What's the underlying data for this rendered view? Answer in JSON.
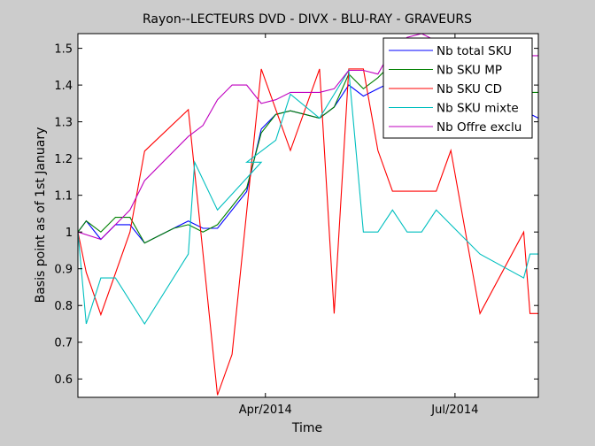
{
  "chart_data": {
    "type": "line",
    "title": "Rayon--LECTEURS DVD - DIVX - BLU-RAY - GRAVEURS",
    "xlabel": "Time",
    "ylabel": "Basis point as of 1st January",
    "xlim": [
      "2014-01-01",
      "2014-08-10"
    ],
    "ylim": [
      0.55,
      1.54
    ],
    "x_ticks": [
      {
        "date": "2014-04-01",
        "label": "Apr/2014"
      },
      {
        "date": "2014-07-01",
        "label": "Jul/2014"
      }
    ],
    "y_ticks": [
      0.6,
      0.7,
      0.8,
      0.9,
      1,
      1.1,
      1.2,
      1.3,
      1.4,
      1.5
    ],
    "y_tick_labels": [
      "0.6",
      "0.7",
      "0.8",
      "0.9",
      "1",
      "1.1",
      "1.2",
      "1.3",
      "1.4",
      "1.5"
    ],
    "legend_position": "top-right",
    "grid": false,
    "series": [
      {
        "name": "Nb total SKU",
        "color": "#0000ff",
        "points": [
          [
            "2014-01-01",
            1.0
          ],
          [
            "2014-01-05",
            1.03
          ],
          [
            "2014-01-12",
            0.98
          ],
          [
            "2014-01-19",
            1.02
          ],
          [
            "2014-01-26",
            1.02
          ],
          [
            "2014-02-02",
            0.97
          ],
          [
            "2014-02-09",
            0.99
          ],
          [
            "2014-02-16",
            1.01
          ],
          [
            "2014-02-23",
            1.03
          ],
          [
            "2014-03-02",
            1.01
          ],
          [
            "2014-03-09",
            1.01
          ],
          [
            "2014-03-16",
            1.06
          ],
          [
            "2014-03-23",
            1.11
          ],
          [
            "2014-03-30",
            1.28
          ],
          [
            "2014-04-06",
            1.32
          ],
          [
            "2014-04-13",
            1.33
          ],
          [
            "2014-04-20",
            1.32
          ],
          [
            "2014-04-27",
            1.31
          ],
          [
            "2014-05-04",
            1.34
          ],
          [
            "2014-05-11",
            1.4
          ],
          [
            "2014-05-18",
            1.37
          ],
          [
            "2014-05-25",
            1.39
          ],
          [
            "2014-06-01",
            1.41
          ],
          [
            "2014-06-08",
            1.37
          ],
          [
            "2014-06-15",
            1.36
          ],
          [
            "2014-06-22",
            1.35
          ],
          [
            "2014-06-29",
            1.36
          ],
          [
            "2014-07-06",
            1.35
          ],
          [
            "2014-07-13",
            1.34
          ],
          [
            "2014-07-20",
            1.34
          ],
          [
            "2014-07-27",
            1.33
          ],
          [
            "2014-08-03",
            1.33
          ],
          [
            "2014-08-10",
            1.31
          ]
        ]
      },
      {
        "name": "Nb SKU MP",
        "color": "#008000",
        "points": [
          [
            "2014-01-01",
            1.0
          ],
          [
            "2014-01-05",
            1.03
          ],
          [
            "2014-01-12",
            1.0
          ],
          [
            "2014-01-19",
            1.04
          ],
          [
            "2014-01-26",
            1.04
          ],
          [
            "2014-02-02",
            0.97
          ],
          [
            "2014-02-09",
            0.99
          ],
          [
            "2014-02-16",
            1.01
          ],
          [
            "2014-02-23",
            1.02
          ],
          [
            "2014-03-02",
            1.0
          ],
          [
            "2014-03-09",
            1.02
          ],
          [
            "2014-03-16",
            1.07
          ],
          [
            "2014-03-23",
            1.12
          ],
          [
            "2014-03-30",
            1.27
          ],
          [
            "2014-04-06",
            1.32
          ],
          [
            "2014-04-13",
            1.33
          ],
          [
            "2014-04-20",
            1.32
          ],
          [
            "2014-04-27",
            1.31
          ],
          [
            "2014-05-04",
            1.34
          ],
          [
            "2014-05-11",
            1.43
          ],
          [
            "2014-05-18",
            1.39
          ],
          [
            "2014-05-25",
            1.42
          ],
          [
            "2014-06-01",
            1.46
          ],
          [
            "2014-06-08",
            1.42
          ],
          [
            "2014-06-15",
            1.4
          ],
          [
            "2014-06-22",
            1.39
          ],
          [
            "2014-06-29",
            1.4
          ],
          [
            "2014-07-06",
            1.39
          ],
          [
            "2014-07-13",
            1.38
          ],
          [
            "2014-07-20",
            1.38
          ],
          [
            "2014-07-27",
            1.38
          ],
          [
            "2014-08-03",
            1.38
          ],
          [
            "2014-08-10",
            1.38
          ]
        ]
      },
      {
        "name": "Nb SKU CD",
        "color": "#ff0000",
        "points": [
          [
            "2014-01-01",
            1.0
          ],
          [
            "2014-01-05",
            0.89
          ],
          [
            "2014-01-12",
            0.775
          ],
          [
            "2014-01-26",
            1.0
          ],
          [
            "2014-02-02",
            1.22
          ],
          [
            "2014-02-23",
            1.333
          ],
          [
            "2014-03-09",
            0.556
          ],
          [
            "2014-03-16",
            0.667
          ],
          [
            "2014-03-30",
            1.444
          ],
          [
            "2014-04-13",
            1.222
          ],
          [
            "2014-04-27",
            1.444
          ],
          [
            "2014-05-04",
            0.778
          ],
          [
            "2014-05-11",
            1.444
          ],
          [
            "2014-05-18",
            1.444
          ],
          [
            "2014-05-25",
            1.222
          ],
          [
            "2014-06-01",
            1.111
          ],
          [
            "2014-06-15",
            1.111
          ],
          [
            "2014-06-22",
            1.111
          ],
          [
            "2014-06-29",
            1.222
          ],
          [
            "2014-07-13",
            0.778
          ],
          [
            "2014-08-03",
            1.0
          ],
          [
            "2014-08-06",
            0.778
          ],
          [
            "2014-08-10",
            0.778
          ]
        ]
      },
      {
        "name": "Nb SKU mixte",
        "color": "#00bfbf",
        "points": [
          [
            "2014-01-01",
            1.0
          ],
          [
            "2014-01-05",
            0.75
          ],
          [
            "2014-01-12",
            0.875
          ],
          [
            "2014-01-19",
            0.875
          ],
          [
            "2014-02-02",
            0.75
          ],
          [
            "2014-02-23",
            0.94
          ],
          [
            "2014-02-26",
            1.19
          ],
          [
            "2014-03-09",
            1.06
          ],
          [
            "2014-03-30",
            1.19
          ],
          [
            "2014-03-23",
            1.19
          ],
          [
            "2014-04-06",
            1.25
          ],
          [
            "2014-04-13",
            1.375
          ],
          [
            "2014-04-27",
            1.31
          ],
          [
            "2014-05-04",
            1.375
          ],
          [
            "2014-05-11",
            1.44
          ],
          [
            "2014-05-18",
            1.0
          ],
          [
            "2014-05-25",
            1.0
          ],
          [
            "2014-06-01",
            1.06
          ],
          [
            "2014-06-08",
            1.0
          ],
          [
            "2014-06-15",
            1.0
          ],
          [
            "2014-06-22",
            1.06
          ],
          [
            "2014-07-13",
            0.94
          ],
          [
            "2014-08-03",
            0.875
          ],
          [
            "2014-08-06",
            0.94
          ],
          [
            "2014-08-10",
            0.94
          ]
        ]
      },
      {
        "name": "Nb Offre exclu",
        "color": "#bf00bf",
        "points": [
          [
            "2014-01-01",
            1.0
          ],
          [
            "2014-01-12",
            0.98
          ],
          [
            "2014-01-26",
            1.06
          ],
          [
            "2014-02-02",
            1.14
          ],
          [
            "2014-02-23",
            1.26
          ],
          [
            "2014-03-02",
            1.29
          ],
          [
            "2014-03-09",
            1.36
          ],
          [
            "2014-03-16",
            1.4
          ],
          [
            "2014-03-23",
            1.4
          ],
          [
            "2014-03-30",
            1.35
          ],
          [
            "2014-04-06",
            1.36
          ],
          [
            "2014-04-13",
            1.38
          ],
          [
            "2014-04-27",
            1.38
          ],
          [
            "2014-05-04",
            1.39
          ],
          [
            "2014-05-11",
            1.44
          ],
          [
            "2014-05-18",
            1.44
          ],
          [
            "2014-05-25",
            1.43
          ],
          [
            "2014-06-01",
            1.5
          ],
          [
            "2014-06-08",
            1.53
          ],
          [
            "2014-06-15",
            1.54
          ],
          [
            "2014-06-22",
            1.52
          ],
          [
            "2014-06-29",
            1.5
          ],
          [
            "2014-07-06",
            1.48
          ],
          [
            "2014-07-13",
            1.48
          ],
          [
            "2014-07-20",
            1.48
          ],
          [
            "2014-08-10",
            1.48
          ]
        ]
      }
    ]
  }
}
